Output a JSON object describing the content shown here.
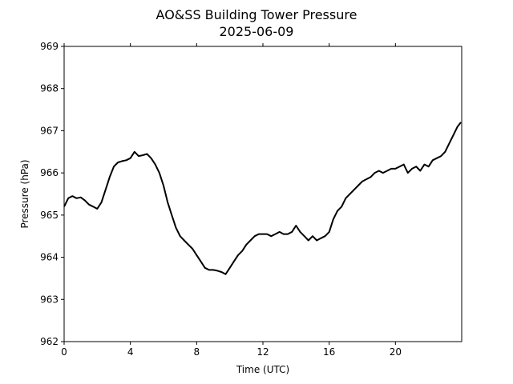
{
  "chart_data": {
    "type": "line",
    "title": "AO&SS Building Tower Pressure",
    "subtitle": "2025-06-09",
    "xlabel": "Time (UTC)",
    "ylabel": "Pressure (hPa)",
    "xlim": [
      0,
      24
    ],
    "ylim": [
      962,
      969
    ],
    "x_ticks": [
      0,
      4,
      8,
      12,
      16,
      20
    ],
    "y_ticks": [
      962,
      963,
      964,
      965,
      966,
      967,
      968,
      969
    ],
    "grid": false,
    "line_color": "#000000",
    "series": [
      {
        "x": [
          0,
          0.25,
          0.5,
          0.75,
          1.0,
          1.25,
          1.5,
          1.75,
          2.0,
          2.25,
          2.5,
          2.75,
          3.0,
          3.25,
          3.5,
          3.75,
          4.0,
          4.25,
          4.5,
          4.75,
          5.0,
          5.25,
          5.5,
          5.75,
          6.0,
          6.25,
          6.5,
          6.75,
          7.0,
          7.25,
          7.5,
          7.75,
          8.0,
          8.25,
          8.5,
          8.75,
          9.0,
          9.25,
          9.5,
          9.75,
          10.0,
          10.25,
          10.5,
          10.75,
          11.0,
          11.25,
          11.5,
          11.75,
          12.0,
          12.25,
          12.5,
          12.75,
          13.0,
          13.25,
          13.5,
          13.75,
          14.0,
          14.25,
          14.5,
          14.75,
          15.0,
          15.25,
          15.5,
          15.75,
          16.0,
          16.25,
          16.5,
          16.75,
          17.0,
          17.25,
          17.5,
          17.75,
          18.0,
          18.25,
          18.5,
          18.75,
          19.0,
          19.25,
          19.5,
          19.75,
          20.0,
          20.25,
          20.5,
          20.75,
          21.0,
          21.25,
          21.5,
          21.75,
          22.0,
          22.25,
          22.5,
          22.75,
          23.0,
          23.25,
          23.5,
          23.75,
          23.95
        ],
        "y": [
          965.2,
          965.4,
          965.45,
          965.4,
          965.42,
          965.35,
          965.25,
          965.2,
          965.15,
          965.3,
          965.6,
          965.9,
          966.15,
          966.25,
          966.28,
          966.3,
          966.35,
          966.5,
          966.4,
          966.42,
          966.45,
          966.35,
          966.2,
          966.0,
          965.7,
          965.3,
          965.0,
          964.7,
          964.5,
          964.4,
          964.3,
          964.2,
          964.05,
          963.9,
          963.75,
          963.7,
          963.7,
          963.68,
          963.65,
          963.6,
          963.75,
          963.9,
          964.05,
          964.15,
          964.3,
          964.4,
          964.5,
          964.55,
          964.55,
          964.55,
          964.5,
          964.55,
          964.6,
          964.55,
          964.55,
          964.6,
          964.75,
          964.6,
          964.5,
          964.4,
          964.5,
          964.4,
          964.45,
          964.5,
          964.6,
          964.9,
          965.1,
          965.2,
          965.4,
          965.5,
          965.6,
          965.7,
          965.8,
          965.85,
          965.9,
          966.0,
          966.05,
          966.0,
          966.05,
          966.1,
          966.1,
          966.15,
          966.2,
          966.0,
          966.1,
          966.15,
          966.05,
          966.2,
          966.15,
          966.3,
          966.35,
          966.4,
          966.5,
          966.7,
          966.9,
          967.1,
          967.2
        ]
      }
    ]
  }
}
